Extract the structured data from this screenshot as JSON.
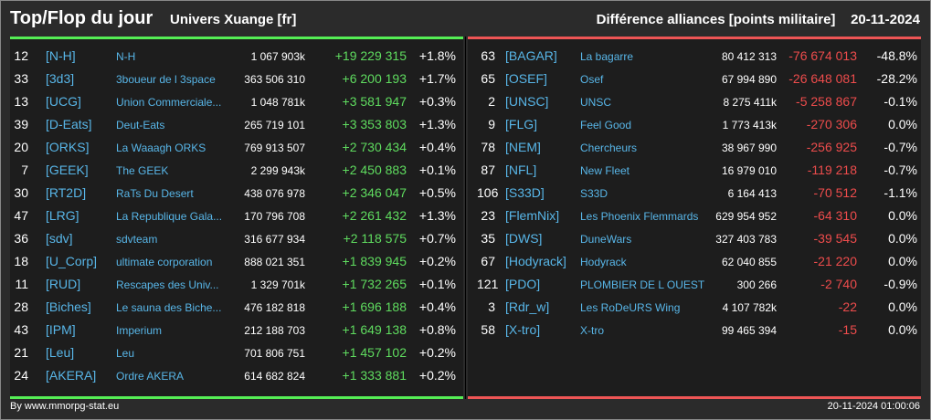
{
  "header": {
    "title": "Top/Flop du jour",
    "universe": "Univers Xuange [fr]",
    "right_title": "Différence alliances [points militaire]",
    "date": "20-11-2024"
  },
  "colors": {
    "up": "#5fdc5f",
    "down": "#ee4c4c",
    "tag": "#58b6e8"
  },
  "top": [
    {
      "rank": "12",
      "tag": "[N-H]",
      "name": "N-H",
      "mil": "1 067 903k",
      "diff": "+19 229 315",
      "pct": "+1.8%"
    },
    {
      "rank": "33",
      "tag": "[3d3]",
      "name": "3boueur de l 3space",
      "mil": "363 506 310",
      "diff": "+6 200 193",
      "pct": "+1.7%"
    },
    {
      "rank": "13",
      "tag": "[UCG]",
      "name": "Union Commerciale...",
      "mil": "1 048 781k",
      "diff": "+3 581 947",
      "pct": "+0.3%"
    },
    {
      "rank": "39",
      "tag": "[D-Eats]",
      "name": "Deut-Eats",
      "mil": "265 719 101",
      "diff": "+3 353 803",
      "pct": "+1.3%"
    },
    {
      "rank": "20",
      "tag": "[ORKS]",
      "name": "La Waaagh ORKS",
      "mil": "769 913 507",
      "diff": "+2 730 434",
      "pct": "+0.4%"
    },
    {
      "rank": "7",
      "tag": "[GEEK]",
      "name": "The GEEK",
      "mil": "2 299 943k",
      "diff": "+2 450 883",
      "pct": "+0.1%"
    },
    {
      "rank": "30",
      "tag": "[RT2D]",
      "name": "RaTs Du Desert",
      "mil": "438 076 978",
      "diff": "+2 346 047",
      "pct": "+0.5%"
    },
    {
      "rank": "47",
      "tag": "[LRG]",
      "name": "La Republique Gala...",
      "mil": "170 796 708",
      "diff": "+2 261 432",
      "pct": "+1.3%"
    },
    {
      "rank": "36",
      "tag": "[sdv]",
      "name": "sdvteam",
      "mil": "316 677 934",
      "diff": "+2 118 575",
      "pct": "+0.7%"
    },
    {
      "rank": "18",
      "tag": "[U_Corp]",
      "name": "ultimate corporation",
      "mil": "888 021 351",
      "diff": "+1 839 945",
      "pct": "+0.2%"
    },
    {
      "rank": "11",
      "tag": "[RUD]",
      "name": "Rescapes des Univ...",
      "mil": "1 329 701k",
      "diff": "+1 732 265",
      "pct": "+0.1%"
    },
    {
      "rank": "28",
      "tag": "[Biches]",
      "name": "Le sauna des Biche...",
      "mil": "476 182 818",
      "diff": "+1 696 188",
      "pct": "+0.4%"
    },
    {
      "rank": "43",
      "tag": "[IPM]",
      "name": "Imperium",
      "mil": "212 188 703",
      "diff": "+1 649 138",
      "pct": "+0.8%"
    },
    {
      "rank": "21",
      "tag": "[Leu]",
      "name": "Leu",
      "mil": "701 806 751",
      "diff": "+1 457 102",
      "pct": "+0.2%"
    },
    {
      "rank": "24",
      "tag": "[AKERA]",
      "name": "Ordre AKERA",
      "mil": "614 682 824",
      "diff": "+1 333 881",
      "pct": "+0.2%"
    }
  ],
  "flop": [
    {
      "rank": "63",
      "tag": "[BAGAR]",
      "name": "La bagarre",
      "mil": "80 412 313",
      "diff": "-76 674 013",
      "pct": "-48.8%"
    },
    {
      "rank": "65",
      "tag": "[OSEF]",
      "name": "Osef",
      "mil": "67 994 890",
      "diff": "-26 648 081",
      "pct": "-28.2%"
    },
    {
      "rank": "2",
      "tag": "[UNSC]",
      "name": "UNSC",
      "mil": "8 275 411k",
      "diff": "-5 258 867",
      "pct": "-0.1%"
    },
    {
      "rank": "9",
      "tag": "[FLG]",
      "name": "Feel Good",
      "mil": "1 773 413k",
      "diff": "-270 306",
      "pct": "0.0%"
    },
    {
      "rank": "78",
      "tag": "[NEM]",
      "name": "Chercheurs",
      "mil": "38 967 990",
      "diff": "-256 925",
      "pct": "-0.7%"
    },
    {
      "rank": "87",
      "tag": "[NFL]",
      "name": "New Fleet",
      "mil": "16 979 010",
      "diff": "-119 218",
      "pct": "-0.7%"
    },
    {
      "rank": "106",
      "tag": "[S33D]",
      "name": "S33D",
      "mil": "6 164 413",
      "diff": "-70 512",
      "pct": "-1.1%"
    },
    {
      "rank": "23",
      "tag": "[FlemNix]",
      "name": "Les Phoenix Flemmards",
      "mil": "629 954 952",
      "diff": "-64 310",
      "pct": "0.0%"
    },
    {
      "rank": "35",
      "tag": "[DWS]",
      "name": "DuneWars",
      "mil": "327 403 783",
      "diff": "-39 545",
      "pct": "0.0%"
    },
    {
      "rank": "67",
      "tag": "[Hodyrack]",
      "name": "Hodyrack",
      "mil": "62 040 855",
      "diff": "-21 220",
      "pct": "0.0%"
    },
    {
      "rank": "121",
      "tag": "[PDO]",
      "name": "PLOMBIER DE L OUEST",
      "mil": "300 266",
      "diff": "-2 740",
      "pct": "-0.9%"
    },
    {
      "rank": "3",
      "tag": "[Rdr_w]",
      "name": "Les RoDeURS Wing",
      "mil": "4 107 782k",
      "diff": "-22",
      "pct": "0.0%"
    },
    {
      "rank": "58",
      "tag": "[X-tro]",
      "name": "X-tro",
      "mil": "99 465 394",
      "diff": "-15",
      "pct": "0.0%"
    }
  ],
  "footer": {
    "source": "By www.mmorpg-stat.eu",
    "timestamp": "20-11-2024 01:00:06"
  }
}
